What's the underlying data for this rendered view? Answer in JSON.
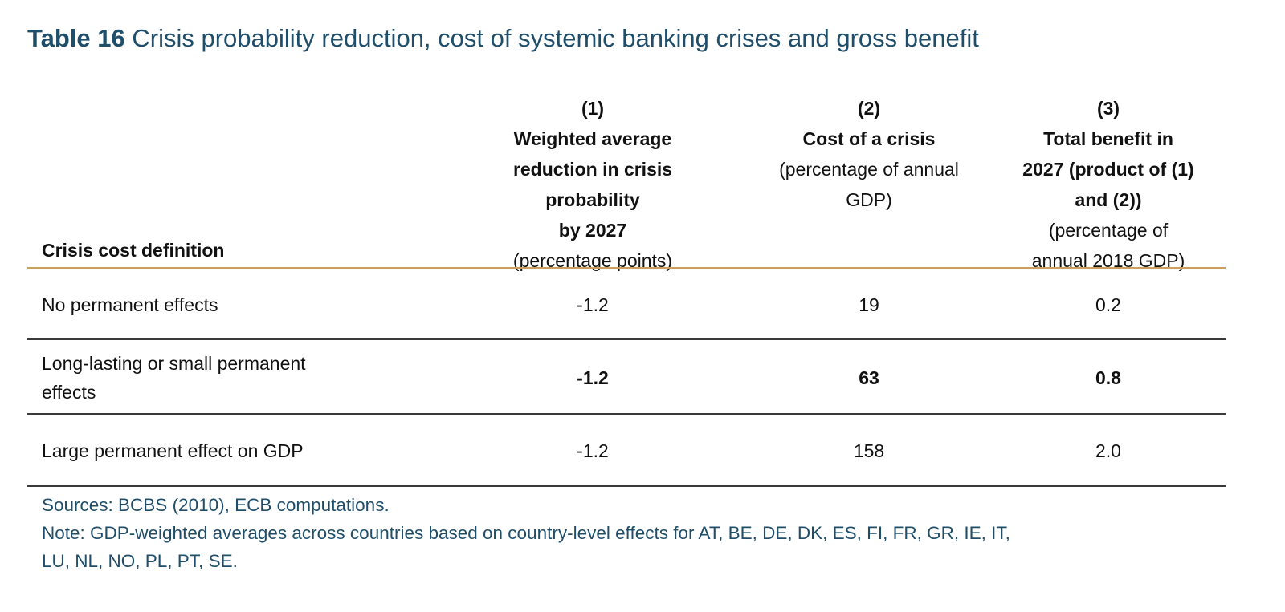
{
  "title": {
    "number": "Table 16",
    "text": "Crisis probability reduction, cost of systemic banking crises and gross benefit"
  },
  "header": {
    "row_label": "Crisis cost definition",
    "col1": {
      "number": "(1)",
      "bold_lines": [
        "Weighted average",
        "reduction in crisis",
        "probability",
        "by 2027"
      ],
      "regular_lines": [
        "(percentage points)"
      ]
    },
    "col2": {
      "number": "(2)",
      "bold_lines": [
        "Cost of a crisis"
      ],
      "regular_lines": [
        "(percentage of annual",
        "GDP)"
      ]
    },
    "col3": {
      "number": "(3)",
      "bold_lines": [
        "Total benefit in",
        "2027 (product of (1)",
        "and (2))"
      ],
      "regular_lines": [
        "(percentage of",
        "annual 2018 GDP)"
      ]
    }
  },
  "rows": [
    {
      "label_lines": [
        "No permanent effects"
      ],
      "c1": "-1.2",
      "c2": "19",
      "c3": "0.2"
    },
    {
      "label_lines": [
        "Long-lasting or small permanent",
        "effects"
      ],
      "c1": "-1.2",
      "c2": "63",
      "c3": "0.8"
    },
    {
      "label_lines": [
        "Large permanent effect on GDP"
      ],
      "c1": "-1.2",
      "c2": "158",
      "c3": "2.0"
    }
  ],
  "notes": {
    "sources": "Sources: BCBS (2010), ECB computations.",
    "note_lines": [
      "Note: GDP-weighted averages across countries based on country-level effects for AT, BE, DE, DK, ES, FI, FR, GR, IE, IT,",
      "LU, NL, NO, PL, PT, SE."
    ]
  },
  "colors": {
    "title_text": "#1f4e6b",
    "header_rule": "#c9a15c",
    "row_rule": "#3a3a3a"
  }
}
